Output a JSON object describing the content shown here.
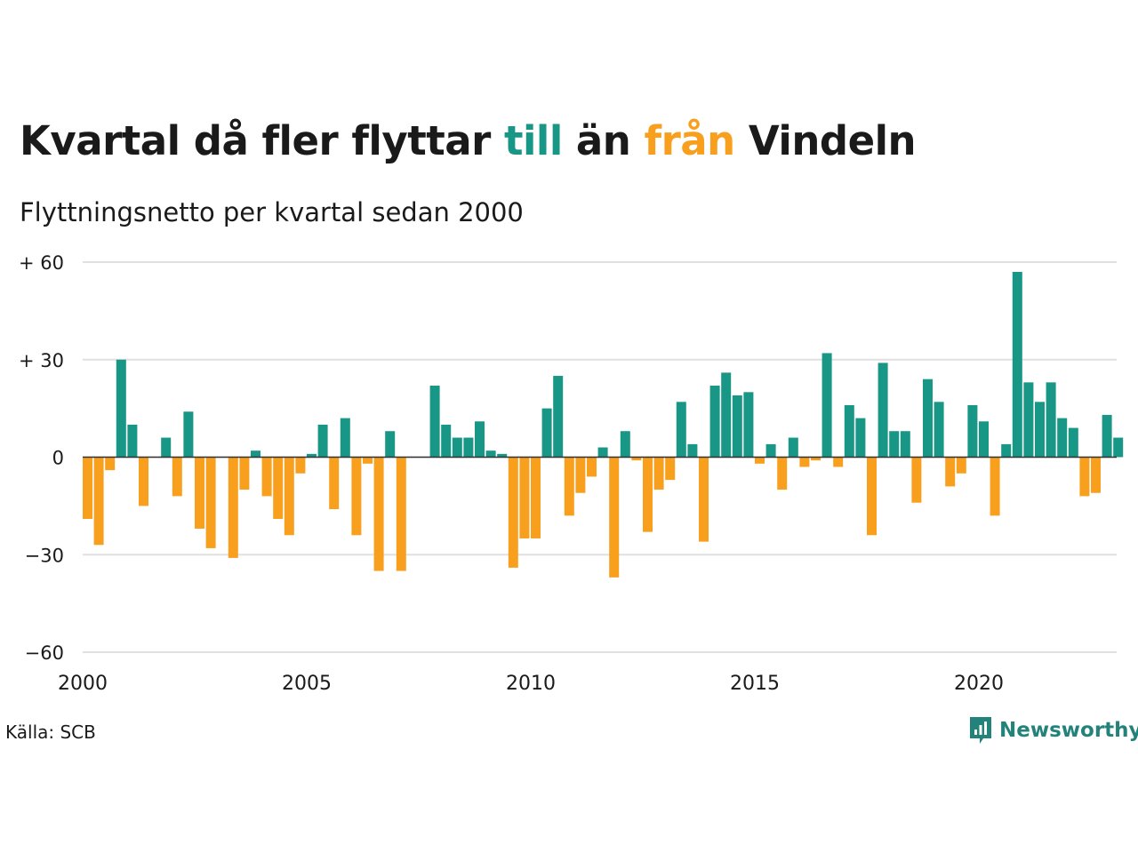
{
  "title": {
    "part1": "Kvartal då fler flyttar ",
    "highlight_in": "till",
    "part2": " än ",
    "highlight_out": "från",
    "part3": " Vindeln"
  },
  "subtitle": "Flyttningsnetto per kvartal sedan 2000",
  "source": "Källa: SCB",
  "brand": "Newsworthy",
  "colors": {
    "positive": "#189686",
    "negative": "#F8A01E",
    "grid": "#e0e0e0",
    "brand": "#23837a"
  },
  "chart_data": {
    "type": "bar",
    "start_year": 2000,
    "quarters_per_year": 4,
    "xticks": [
      "2000",
      "2005",
      "2010",
      "2015",
      "2020"
    ],
    "yticks": [
      {
        "value": 60,
        "label": "+ 60"
      },
      {
        "value": 30,
        "label": "+ 30"
      },
      {
        "value": 0,
        "label": "0"
      },
      {
        "value": -30,
        "label": "−30"
      },
      {
        "value": -60,
        "label": "−60"
      }
    ],
    "ylim": [
      -60,
      60
    ],
    "values": [
      -19,
      -27,
      -4,
      30,
      10,
      -15,
      0,
      6,
      -12,
      14,
      -22,
      -28,
      0,
      -31,
      -10,
      2,
      -12,
      -19,
      -24,
      -5,
      1,
      10,
      -16,
      12,
      -24,
      -2,
      -35,
      8,
      -35,
      0,
      0,
      22,
      10,
      6,
      6,
      11,
      2,
      1,
      -34,
      -25,
      -25,
      15,
      25,
      -18,
      -11,
      -6,
      3,
      -37,
      8,
      -1,
      -23,
      -10,
      -7,
      17,
      4,
      -26,
      22,
      26,
      19,
      20,
      -2,
      4,
      -10,
      6,
      -3,
      -1,
      32,
      -3,
      16,
      12,
      -24,
      29,
      8,
      8,
      -14,
      24,
      17,
      -9,
      -5,
      16,
      11,
      -18,
      4,
      57,
      23,
      17,
      23,
      12,
      9,
      -12,
      -11,
      13,
      6
    ]
  }
}
